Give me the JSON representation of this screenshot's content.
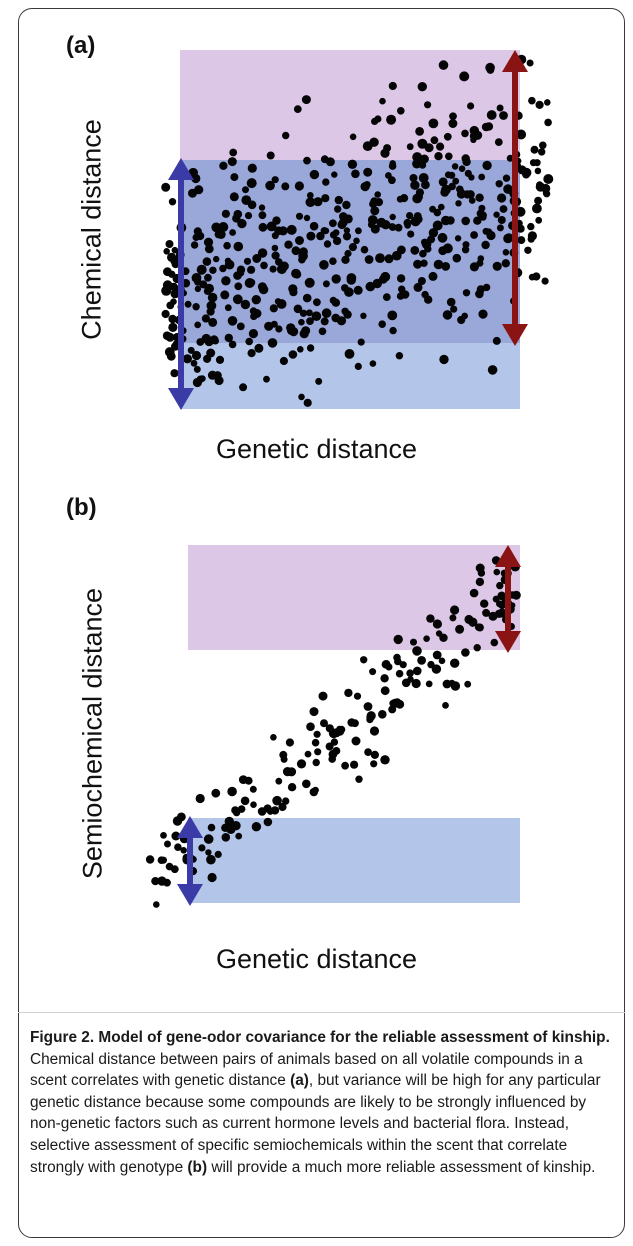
{
  "panels": [
    {
      "label": "(a)",
      "xlabel": "Genetic distance",
      "ylabel": "Chemical distance"
    },
    {
      "label": "(b)",
      "xlabel": "Genetic distance",
      "ylabel": "Semiochemical distance"
    }
  ],
  "caption": {
    "title": "Figure 2. Model of gene-odor covariance for the reliable assessment of kinship.",
    "part1": " Chemical distance between pairs of animals based on all volatile compounds in a scent correlates with genetic distance ",
    "ref_a": "(a)",
    "part2": ", but variance will be high for any particular genetic distance because some compounds are likely to be strongly influenced by non-genetic factors such as current hormone levels and bacterial flora. Instead, selective assessment of specific semiochemicals within the scent that correlate strongly with genotype ",
    "ref_b": "(b)",
    "part3": " will provide a much more reliable assessment of kinship."
  },
  "colors": {
    "pink_band": "#dcc8e6",
    "blue_band": "#b3c6ea",
    "overlap": "#9aa7d9",
    "dot": "#050505",
    "blue_arrow": "#3b3ba8",
    "red_arrow": "#8a1414"
  }
}
